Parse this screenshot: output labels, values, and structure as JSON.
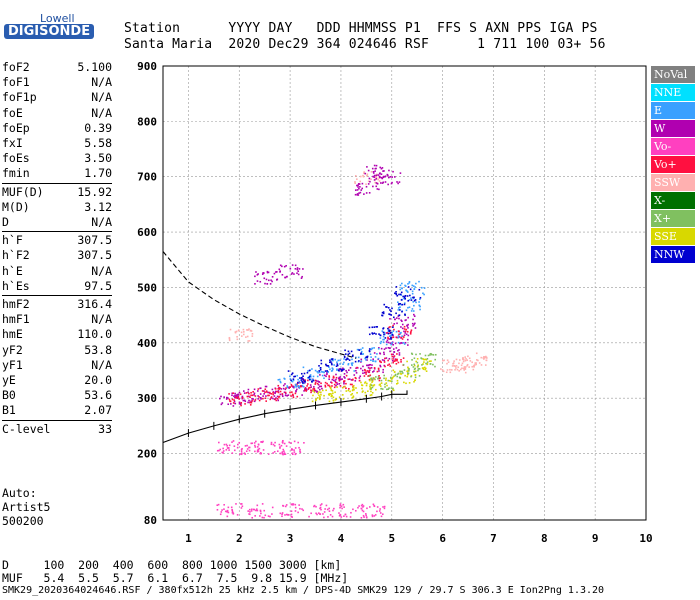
{
  "logo": {
    "top": "Lowell",
    "bottom": "DIGISONDE"
  },
  "header": {
    "line1": "Station      YYYY DAY   DDD HHMMSS P1  FFS S AXN PPS IGA PS",
    "line2": "Santa Maria  2020 Dec29 364 024646 RSF      1 711 100 03+ 56"
  },
  "params_groups": [
    [
      [
        "foF2",
        "5.100"
      ],
      [
        "foF1",
        "N/A"
      ],
      [
        "foF1p",
        "N/A"
      ],
      [
        "foE",
        "N/A"
      ],
      [
        "foEp",
        "0.39"
      ],
      [
        "fxI",
        "5.58"
      ],
      [
        "foEs",
        "3.50"
      ],
      [
        "fmin",
        "1.70"
      ]
    ],
    [
      [
        "MUF(D)",
        "15.92"
      ],
      [
        "M(D)",
        "3.12"
      ],
      [
        "D",
        "N/A"
      ]
    ],
    [
      [
        "h`F",
        "307.5"
      ],
      [
        "h`F2",
        "307.5"
      ],
      [
        "h`E",
        "N/A"
      ],
      [
        "h`Es",
        "97.5"
      ]
    ],
    [
      [
        "hmF2",
        "316.4"
      ],
      [
        "hmF1",
        "N/A"
      ],
      [
        "hmE",
        "110.0"
      ],
      [
        "yF2",
        "53.8"
      ],
      [
        "yF1",
        "N/A"
      ],
      [
        "yE",
        "20.0"
      ],
      [
        "B0",
        "53.6"
      ],
      [
        "B1",
        "2.07"
      ]
    ],
    [
      [
        "C-level",
        "33"
      ]
    ]
  ],
  "auto": [
    "Auto:",
    "Artist5",
    "500200"
  ],
  "legend": [
    {
      "label": "NoVal",
      "color": "#808080"
    },
    {
      "label": "NNE",
      "color": "#00e0ff"
    },
    {
      "label": "E",
      "color": "#3aa0ff"
    },
    {
      "label": "W",
      "color": "#b000b0"
    },
    {
      "label": "Vo-",
      "color": "#ff40c0"
    },
    {
      "label": "Vo+",
      "color": "#ff1040"
    },
    {
      "label": "SSW",
      "color": "#ffb0b0"
    },
    {
      "label": "X-",
      "color": "#007000"
    },
    {
      "label": "X+",
      "color": "#80c060"
    },
    {
      "label": "SSE",
      "color": "#d8d800"
    },
    {
      "label": "NNW",
      "color": "#0000d0"
    }
  ],
  "footer": {
    "line1": "D     100  200  400  600  800 1000 1500 3000 [km]",
    "line2": "MUF   5.4  5.5  5.7  6.1  6.7  7.5  9.8 15.9 [MHz]",
    "line3": "SMK29_2020364024646.RSF / 380fx512h 25 kHz 2.5 km / DPS-4D SMK29 129 / 29.7 S 306.3 E Ion2Png 1.3.20"
  },
  "chart_data": {
    "type": "scatter",
    "title": "",
    "xlabel": "",
    "ylabel": "",
    "xlim": [
      0.5,
      10
    ],
    "ylim": [
      80,
      900
    ],
    "xticks": [
      1,
      2,
      3,
      4,
      5,
      6,
      7,
      8,
      9,
      10
    ],
    "yticks": [
      80,
      200,
      300,
      400,
      500,
      600,
      700,
      800,
      900
    ],
    "grid": true,
    "legend_placement": "right",
    "series": [
      {
        "color": "#b000b0",
        "points": [
          [
            1.8,
            300
          ],
          [
            2.2,
            305
          ],
          [
            2.6,
            310
          ],
          [
            3.0,
            318
          ],
          [
            3.4,
            325
          ],
          [
            3.8,
            335
          ],
          [
            4.2,
            345
          ],
          [
            4.6,
            360
          ],
          [
            4.9,
            380
          ],
          [
            5.1,
            410
          ],
          [
            5.2,
            440
          ]
        ]
      },
      {
        "color": "#ff1040",
        "points": [
          [
            2.0,
            300
          ],
          [
            2.5,
            306
          ],
          [
            3.0,
            314
          ],
          [
            3.5,
            322
          ],
          [
            4.0,
            330
          ],
          [
            4.5,
            345
          ],
          [
            5.0,
            370
          ],
          [
            5.15,
            420
          ]
        ]
      },
      {
        "color": "#d8d800",
        "points": [
          [
            3.6,
            305
          ],
          [
            4.0,
            310
          ],
          [
            4.4,
            318
          ],
          [
            4.8,
            325
          ],
          [
            5.2,
            340
          ],
          [
            5.5,
            360
          ]
        ]
      },
      {
        "color": "#3aa0ff",
        "points": [
          [
            3.0,
            330
          ],
          [
            3.5,
            345
          ],
          [
            4.0,
            360
          ],
          [
            4.5,
            380
          ],
          [
            5.0,
            410
          ],
          [
            5.3,
            470
          ],
          [
            5.4,
            500
          ]
        ]
      },
      {
        "color": "#0000d0",
        "points": [
          [
            3.2,
            340
          ],
          [
            3.8,
            360
          ],
          [
            4.3,
            380
          ],
          [
            4.8,
            420
          ],
          [
            5.0,
            460
          ],
          [
            5.3,
            490
          ]
        ]
      },
      {
        "color": "#80c060",
        "points": [
          [
            4.8,
            330
          ],
          [
            5.3,
            350
          ],
          [
            5.6,
            370
          ]
        ]
      },
      {
        "color": "#ffb0b0",
        "points": [
          [
            6.2,
            360
          ],
          [
            6.4,
            365
          ],
          [
            6.6,
            370
          ],
          [
            2.0,
            415
          ],
          [
            4.5,
            700
          ]
        ]
      },
      {
        "color": "#ff40c0",
        "points": [
          [
            1.8,
            212
          ],
          [
            2.2,
            212
          ],
          [
            2.6,
            212
          ],
          [
            3.0,
            212
          ],
          [
            1.8,
            98
          ],
          [
            2.4,
            98
          ],
          [
            3.0,
            98
          ],
          [
            3.6,
            98
          ],
          [
            4.2,
            98
          ],
          [
            4.6,
            98
          ]
        ]
      },
      {
        "color": "#b000b0",
        "points": [
          [
            4.5,
            680
          ],
          [
            4.7,
            710
          ],
          [
            4.9,
            700
          ],
          [
            3.0,
            530
          ],
          [
            2.5,
            520
          ]
        ]
      }
    ],
    "fit_curve": [
      [
        0.5,
        220
      ],
      [
        1.0,
        237
      ],
      [
        1.5,
        250
      ],
      [
        2.0,
        262
      ],
      [
        2.5,
        272
      ],
      [
        3.0,
        280
      ],
      [
        3.5,
        287
      ],
      [
        4.0,
        293
      ],
      [
        4.5,
        299
      ],
      [
        4.8,
        303
      ],
      [
        5.0,
        307
      ]
    ],
    "nose_curve": [
      [
        5.0,
        307
      ],
      [
        5.3,
        307
      ],
      [
        5.3,
        314
      ]
    ],
    "muf_curve": [
      [
        0.5,
        565
      ],
      [
        1.0,
        510
      ],
      [
        1.5,
        478
      ],
      [
        2.0,
        452
      ],
      [
        2.5,
        430
      ],
      [
        3.0,
        410
      ],
      [
        3.5,
        393
      ],
      [
        4.0,
        380
      ],
      [
        4.3,
        372
      ]
    ]
  }
}
